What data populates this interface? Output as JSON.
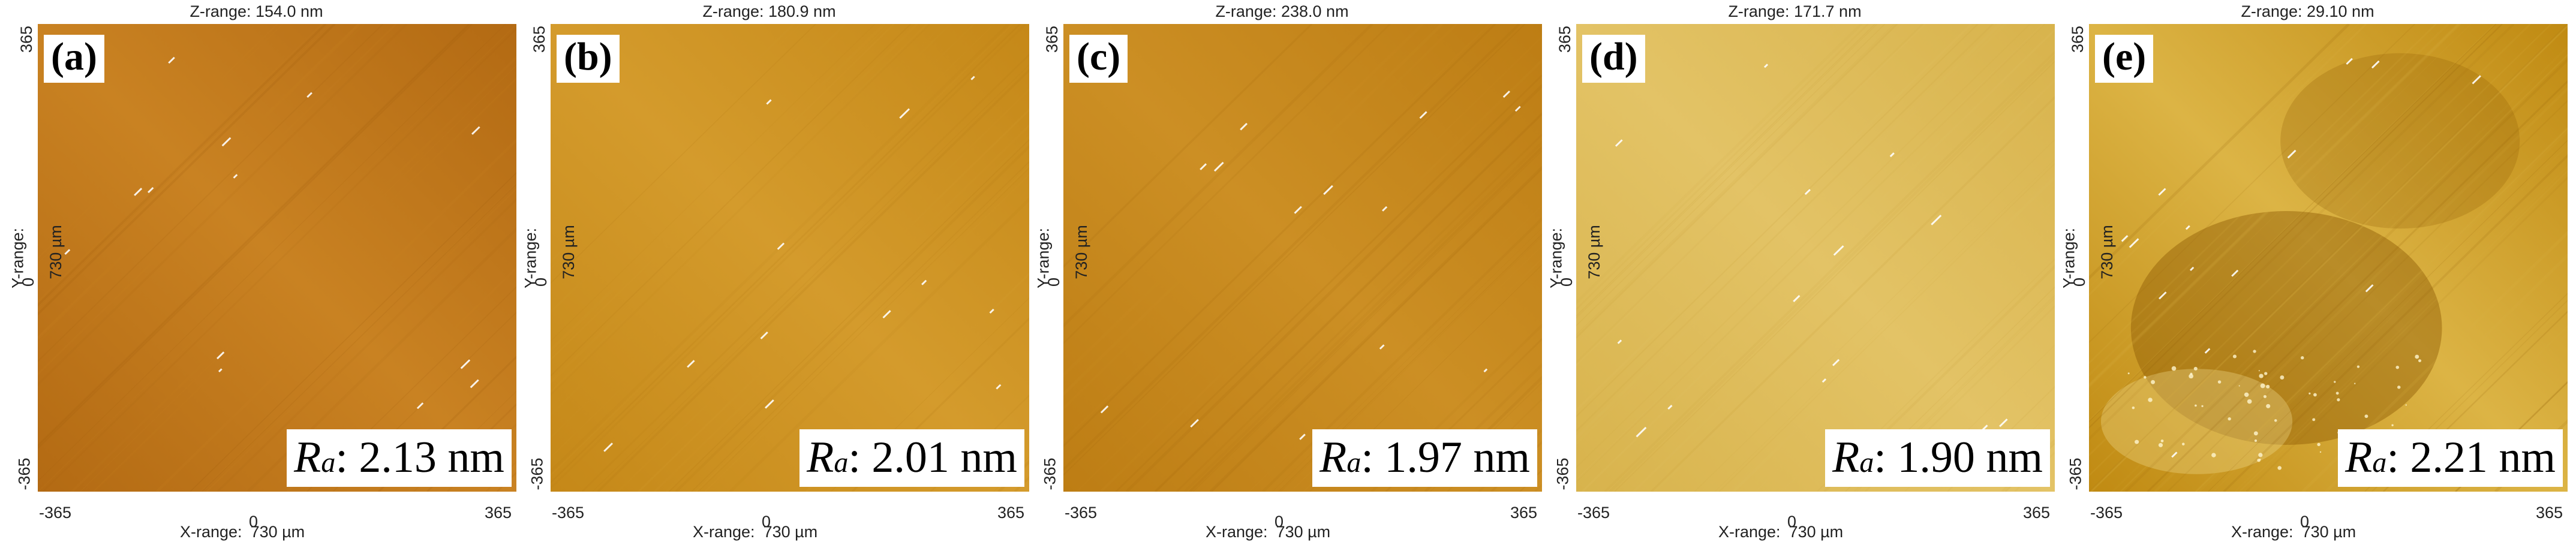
{
  "axis_text": {
    "y_label": "Y-range:",
    "x_label": "X-range:",
    "range_value": "730 µm",
    "tick_pos": "365",
    "tick_neg": "-365",
    "tick_zero": "0"
  },
  "panels": [
    {
      "letter": "(a)",
      "zrange": "Z-range:  154.0 nm",
      "ra_symbol": "R",
      "ra_sub": "a",
      "ra_value": ": 2.13 nm",
      "colors": {
        "base": "#b36a13",
        "light": "#c98222",
        "dark": "#9c5a0c"
      }
    },
    {
      "letter": "(b)",
      "zrange": "Z-range:  180.9 nm",
      "ra_symbol": "R",
      "ra_sub": "a",
      "ra_value": ": 2.01 nm",
      "colors": {
        "base": "#c58818",
        "light": "#d49b2c",
        "dark": "#b17612"
      }
    },
    {
      "letter": "(c)",
      "zrange": "Z-range:  238.0 nm",
      "ra_symbol": "R",
      "ra_sub": "a",
      "ra_value": ": 1.97 nm",
      "colors": {
        "base": "#bd7d14",
        "light": "#cc8f24",
        "dark": "#a86b0e"
      }
    },
    {
      "letter": "(d)",
      "zrange": "Z-range:  171.7 nm",
      "ra_symbol": "R",
      "ra_sub": "a",
      "ra_value": ": 1.90 nm",
      "colors": {
        "base": "#d8b34c",
        "light": "#e3c366",
        "dark": "#c9a03a"
      }
    },
    {
      "letter": "(e)",
      "zrange": "Z-range:  29.10 nm",
      "ra_symbol": "R",
      "ra_sub": "a",
      "ra_value": ": 2.21 nm",
      "colors": {
        "base": "#c08a12",
        "light": "#dcb445",
        "dark": "#8f5a05"
      }
    }
  ]
}
